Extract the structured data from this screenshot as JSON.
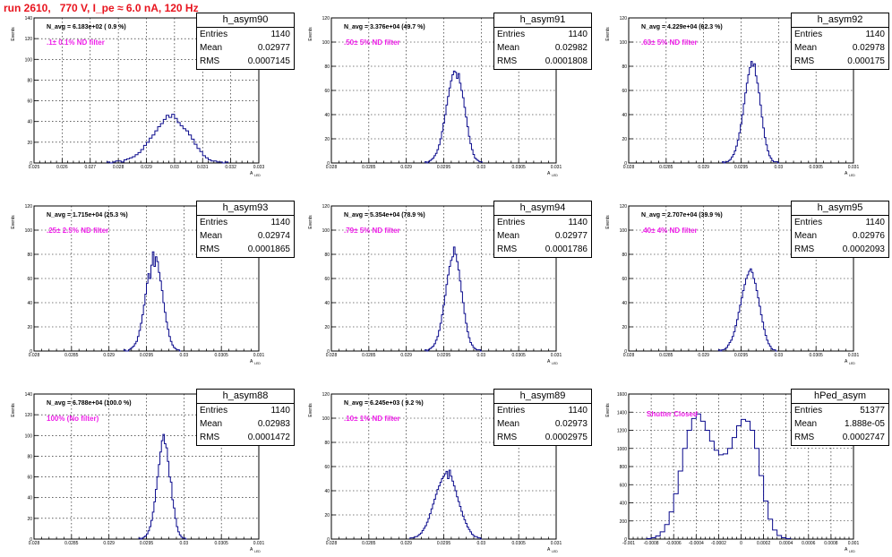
{
  "title": "run 2610,   770 V, I_pe ≈ 6.0 nA, 120 Hz",
  "axis_label_y": "Events",
  "axis_label_x_main": "A",
  "axis_label_x_sub": "LED",
  "stat_labels": {
    "entries": "Entries",
    "mean": "Mean",
    "rms": "RMS"
  },
  "colors": {
    "title": "#e8141e",
    "histogram": "#0a0a8c",
    "annotation": "#ee1ee8"
  },
  "chart_data": [
    {
      "type": "histogram",
      "name": "h_asym90",
      "navg": "N_avg = 6.183e+02 ( 0.9 %)",
      "annotation": ".1± 0.1% ND filter",
      "stats": {
        "entries": "1140",
        "mean": "0.02977",
        "rms": "0.0007145"
      },
      "xlim": [
        0.025,
        0.033
      ],
      "ylim": [
        0,
        140
      ],
      "yticks": [
        "0",
        "20",
        "40",
        "60",
        "80",
        "100",
        "120",
        "140"
      ],
      "xticks": [
        "0.025",
        "0.026",
        "0.027",
        "0.028",
        "0.029",
        "0.03",
        "0.031",
        "0.032",
        "0.033"
      ],
      "bins": {
        "start": 0.0276,
        "step": 0.0001,
        "counts": [
          1,
          0,
          1,
          2,
          2,
          1,
          3,
          4,
          5,
          6,
          8,
          10,
          13,
          17,
          20,
          24,
          27,
          31,
          35,
          38,
          42,
          46,
          44,
          47,
          43,
          39,
          36,
          33,
          31,
          27,
          23,
          18,
          14,
          11,
          7,
          5,
          3,
          2,
          2,
          1,
          1,
          0,
          1
        ]
      }
    },
    {
      "type": "histogram",
      "name": "h_asym91",
      "navg": "N_avg = 3.376e+04 (49.7 %)",
      "annotation": ".50± 5% ND filter",
      "stats": {
        "entries": "1140",
        "mean": "0.02982",
        "rms": "0.0001808"
      },
      "xlim": [
        0.028,
        0.031
      ],
      "ylim": [
        0,
        120
      ],
      "yticks": [
        "0",
        "20",
        "40",
        "60",
        "80",
        "100",
        "120"
      ],
      "xticks": [
        "0.028",
        "0.0285",
        "0.029",
        "0.0295",
        "0.03",
        "0.0305",
        "0.031"
      ],
      "bins": {
        "start": 0.02925,
        "step": 2e-05,
        "counts": [
          1,
          0,
          1,
          2,
          3,
          4,
          6,
          8,
          11,
          15,
          20,
          26,
          33,
          40,
          48,
          55,
          62,
          68,
          73,
          76,
          75,
          70,
          74,
          66,
          60,
          54,
          46,
          38,
          30,
          22,
          16,
          11,
          7,
          4,
          3,
          2,
          1,
          1
        ]
      }
    },
    {
      "type": "histogram",
      "name": "h_asym92",
      "navg": "N_avg = 4.229e+04 (62.3 %)",
      "annotation": ".63± 5% ND filter",
      "stats": {
        "entries": "1140",
        "mean": "0.02978",
        "rms": "0.000175"
      },
      "xlim": [
        0.028,
        0.031
      ],
      "ylim": [
        0,
        120
      ],
      "yticks": [
        "0",
        "20",
        "40",
        "60",
        "80",
        "100",
        "120"
      ],
      "xticks": [
        "0.028",
        "0.0285",
        "0.029",
        "0.0295",
        "0.03",
        "0.0305",
        "0.031"
      ],
      "bins": {
        "start": 0.02925,
        "step": 2e-05,
        "counts": [
          1,
          0,
          1,
          1,
          2,
          3,
          5,
          7,
          10,
          14,
          19,
          25,
          32,
          40,
          49,
          58,
          66,
          73,
          79,
          84,
          80,
          82,
          72,
          66,
          58,
          48,
          38,
          29,
          21,
          15,
          10,
          6,
          4,
          2,
          1,
          1,
          1,
          0
        ]
      }
    },
    {
      "type": "histogram",
      "name": "h_asym93",
      "navg": "N_avg = 1.715e+04 (25.3 %)",
      "annotation": ".25± 2.5% ND filter",
      "stats": {
        "entries": "1140",
        "mean": "0.02974",
        "rms": "0.0001865"
      },
      "xlim": [
        0.028,
        0.031
      ],
      "ylim": [
        0,
        120
      ],
      "yticks": [
        "0",
        "20",
        "40",
        "60",
        "80",
        "100",
        "120"
      ],
      "xticks": [
        "0.028",
        "0.0285",
        "0.029",
        "0.0295",
        "0.03",
        "0.0305",
        "0.031"
      ],
      "bins": {
        "start": 0.0292,
        "step": 2e-05,
        "counts": [
          1,
          0,
          0,
          1,
          2,
          3,
          4,
          6,
          8,
          12,
          17,
          23,
          30,
          38,
          47,
          56,
          64,
          60,
          71,
          82,
          70,
          78,
          74,
          65,
          58,
          50,
          40,
          32,
          24,
          18,
          12,
          8,
          5,
          3,
          2,
          1,
          1,
          0
        ]
      }
    },
    {
      "type": "histogram",
      "name": "h_asym94",
      "navg": "N_avg = 5.354e+04 (78.9 %)",
      "annotation": ".79± 5% ND filter",
      "stats": {
        "entries": "1140",
        "mean": "0.02977",
        "rms": "0.0001786"
      },
      "xlim": [
        0.028,
        0.031
      ],
      "ylim": [
        0,
        120
      ],
      "yticks": [
        "0",
        "20",
        "40",
        "60",
        "80",
        "100",
        "120"
      ],
      "xticks": [
        "0.028",
        "0.0285",
        "0.029",
        "0.0295",
        "0.03",
        "0.0305",
        "0.031"
      ],
      "bins": {
        "start": 0.02925,
        "step": 2e-05,
        "counts": [
          1,
          0,
          1,
          2,
          3,
          4,
          6,
          9,
          12,
          17,
          23,
          30,
          38,
          46,
          55,
          63,
          70,
          75,
          78,
          86,
          80,
          74,
          67,
          58,
          49,
          40,
          31,
          23,
          16,
          11,
          7,
          5,
          3,
          2,
          1,
          1,
          1,
          0
        ]
      }
    },
    {
      "type": "histogram",
      "name": "h_asym95",
      "navg": "N_avg = 2.707e+04 (39.9 %)",
      "annotation": ".40± 4% ND filter",
      "stats": {
        "entries": "1140",
        "mean": "0.02976",
        "rms": "0.0002093"
      },
      "xlim": [
        0.028,
        0.031
      ],
      "ylim": [
        0,
        120
      ],
      "yticks": [
        "0",
        "20",
        "40",
        "60",
        "80",
        "100",
        "120"
      ],
      "xticks": [
        "0.028",
        "0.0285",
        "0.029",
        "0.0295",
        "0.03",
        "0.0305",
        "0.031"
      ],
      "bins": {
        "start": 0.0292,
        "step": 2e-05,
        "counts": [
          1,
          0,
          1,
          1,
          2,
          3,
          5,
          7,
          9,
          12,
          16,
          21,
          26,
          32,
          38,
          44,
          50,
          55,
          60,
          63,
          66,
          68,
          65,
          60,
          56,
          50,
          44,
          37,
          30,
          24,
          18,
          13,
          9,
          6,
          4,
          2,
          1,
          1,
          0
        ]
      }
    },
    {
      "type": "histogram",
      "name": "h_asym88",
      "navg": "N_avg = 6.788e+04 (100.0 %)",
      "annotation": "100% (No filter)",
      "stats": {
        "entries": "1140",
        "mean": "0.02983",
        "rms": "0.0001472"
      },
      "xlim": [
        0.028,
        0.031
      ],
      "ylim": [
        0,
        140
      ],
      "yticks": [
        "0",
        "20",
        "40",
        "60",
        "80",
        "100",
        "120",
        "140"
      ],
      "xticks": [
        "0.028",
        "0.0285",
        "0.029",
        "0.0295",
        "0.03",
        "0.0305",
        "0.031"
      ],
      "bins": {
        "start": 0.0294,
        "step": 2e-05,
        "counts": [
          1,
          0,
          1,
          2,
          3,
          5,
          8,
          12,
          18,
          26,
          36,
          48,
          60,
          72,
          84,
          95,
          101,
          92,
          88,
          75,
          60,
          55,
          38,
          30,
          20,
          12,
          7,
          4,
          2,
          1,
          1,
          0
        ]
      }
    },
    {
      "type": "histogram",
      "name": "h_asym89",
      "navg": "N_avg = 6.245e+03 ( 9.2 %)",
      "annotation": ".10± 1% ND filter",
      "stats": {
        "entries": "1140",
        "mean": "0.02973",
        "rms": "0.0002975"
      },
      "xlim": [
        0.028,
        0.031
      ],
      "ylim": [
        0,
        120
      ],
      "yticks": [
        "0",
        "20",
        "40",
        "60",
        "80",
        "100",
        "120"
      ],
      "xticks": [
        "0.028",
        "0.0285",
        "0.029",
        "0.0295",
        "0.03",
        "0.0305",
        "0.031"
      ],
      "bins": {
        "start": 0.02905,
        "step": 2e-05,
        "counts": [
          1,
          1,
          1,
          2,
          2,
          3,
          4,
          5,
          7,
          9,
          11,
          14,
          17,
          21,
          25,
          29,
          33,
          37,
          41,
          44,
          47,
          50,
          52,
          54,
          56,
          50,
          57,
          52,
          48,
          44,
          40,
          35,
          31,
          27,
          23,
          19,
          16,
          13,
          10,
          8,
          6,
          4,
          3,
          2,
          2,
          1,
          1,
          0
        ]
      }
    },
    {
      "type": "histogram",
      "name": "hPed_asym",
      "navg": "",
      "annotation": "Shutter Closed",
      "stats": {
        "entries": "51377",
        "mean": "1.888e-05",
        "rms": "0.0002747"
      },
      "xlim": [
        -0.001,
        0.001
      ],
      "ylim": [
        0,
        1600
      ],
      "yticks": [
        "0",
        "200",
        "400",
        "600",
        "800",
        "1000",
        "1200",
        "1400",
        "1600"
      ],
      "xticks": [
        "-0.001",
        "-0.0008",
        "-0.0006",
        "-0.0004",
        "-0.0002",
        "0",
        "0.0002",
        "0.0004",
        "0.0006",
        "0.0008",
        "0.001"
      ],
      "bins": {
        "start": -0.00084,
        "step": 4e-05,
        "counts": [
          5,
          15,
          35,
          80,
          160,
          300,
          500,
          750,
          1000,
          1200,
          1330,
          1380,
          1300,
          1200,
          1080,
          980,
          930,
          940,
          1000,
          1120,
          1250,
          1320,
          1300,
          1200,
          1000,
          700,
          420,
          220,
          100,
          40,
          15,
          5
        ]
      }
    }
  ]
}
